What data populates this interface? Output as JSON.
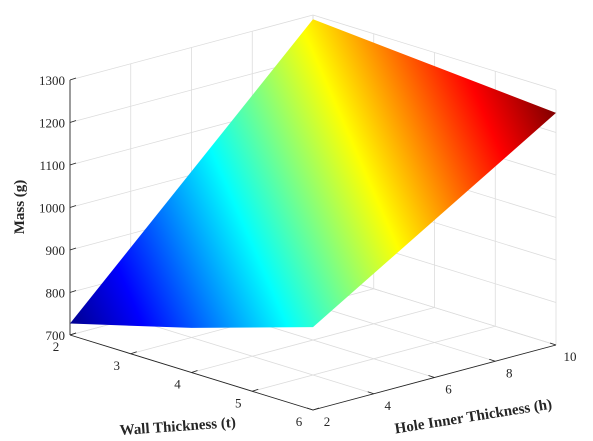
{
  "chart_data": {
    "type": "surface",
    "title": "",
    "xlabel": "Wall Thickness (t)",
    "ylabel": "Hole Inner Thickness (h)",
    "zlabel": "Mass (g)",
    "xlim": [
      2,
      6
    ],
    "ylim": [
      2,
      10
    ],
    "zlim": [
      700,
      1300
    ],
    "xticks": [
      "2",
      "3",
      "4",
      "5",
      "6"
    ],
    "yticks": [
      "2",
      "4",
      "6",
      "8",
      "10"
    ],
    "zticks": [
      "700",
      "800",
      "900",
      "1000",
      "1100",
      "1200",
      "1300"
    ],
    "grid": true,
    "colormap": "jet",
    "colormap_colors": [
      "#00008f",
      "#0000ff",
      "#0080ff",
      "#00ffff",
      "#80ff80",
      "#ffff00",
      "#ff8000",
      "#ff0000",
      "#800000"
    ],
    "surface_points": [
      {
        "t": 2,
        "h": 2,
        "mass": 727
      },
      {
        "t": 4,
        "h": 2,
        "mass": 805
      },
      {
        "t": 6,
        "h": 2,
        "mass": 895
      },
      {
        "t": 2,
        "h": 10,
        "mass": 1290
      },
      {
        "t": 6,
        "h": 10,
        "mass": 1246
      }
    ]
  }
}
